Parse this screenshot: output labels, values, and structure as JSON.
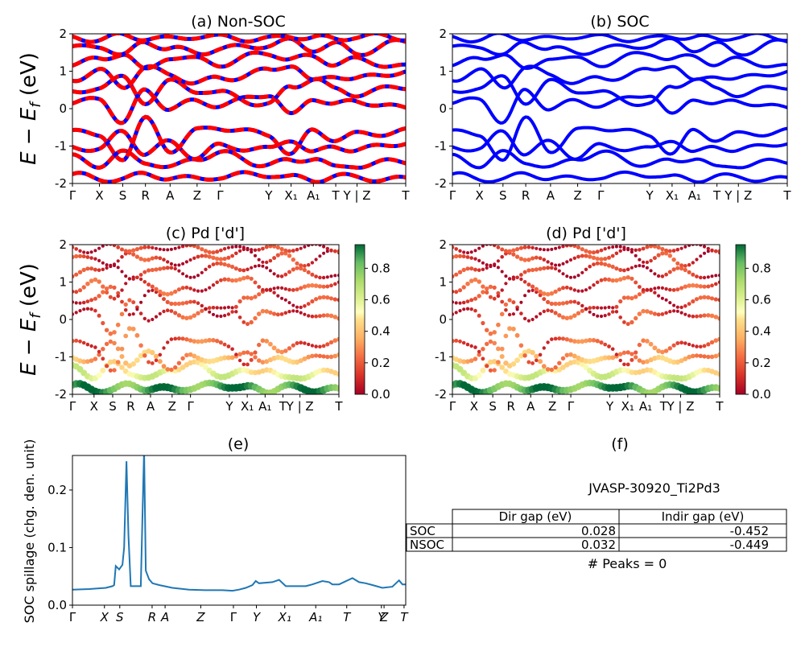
{
  "figure": {
    "ylabel_energy": "E − E",
    "ylabel_energy_sub": "f",
    "ylabel_energy_unit": " (eV)"
  },
  "kpath_labels": [
    "Γ",
    "X",
    "S",
    "R",
    "A",
    "Z",
    "Γ",
    "Y",
    "X₁",
    "A₁",
    "T",
    "Y | Z",
    "T"
  ],
  "kpath_positions": [
    0,
    0.081,
    0.151,
    0.219,
    0.293,
    0.374,
    0.443,
    0.589,
    0.656,
    0.723,
    0.79,
    0.854,
    1.0
  ],
  "colors": {
    "nonsoc_a": "#ff0000",
    "nonsoc_b": "#0000ff",
    "soc": "#0000ff",
    "spillage": "#1f77b4"
  },
  "chart_data": [
    {
      "id": "a",
      "type": "line",
      "title": "(a) Non-SOC",
      "xlabel": "",
      "ylabel": "E - E_f (eV)",
      "ylim": [
        -2,
        2
      ],
      "yticks": [
        -2,
        -1,
        0,
        1,
        2
      ],
      "style": "dashed red/blue bands",
      "bands": [
        {
          "values": [
            -1.75,
            -1.9,
            -1.85,
            -1.78,
            -1.82,
            -1.9,
            -1.8,
            -1.75,
            -1.85,
            -1.9,
            -1.8,
            -1.85,
            -1.9
          ]
        },
        {
          "values": [
            -1.3,
            -1.5,
            -1.2,
            -1.4,
            -1.6,
            -1.3,
            -1.2,
            -1.5,
            -1.4,
            -1.3,
            -1.6,
            -1.5,
            -1.4
          ]
        },
        {
          "values": [
            -1.0,
            -1.1,
            -0.6,
            -1.2,
            -0.9,
            -1.3,
            -1.0,
            -1.1,
            -0.8,
            -1.2,
            -1.0,
            -1.1,
            -0.9
          ]
        },
        {
          "values": [
            -0.5,
            -0.8,
            -1.3,
            -0.3,
            -1.1,
            -0.6,
            -0.5,
            -0.7,
            -1.2,
            -0.6,
            -0.8,
            -0.7,
            -0.6
          ]
        },
        {
          "values": [
            0.1,
            0.3,
            -0.4,
            0.5,
            0.0,
            0.2,
            0.1,
            0.4,
            -0.2,
            0.3,
            0.1,
            0.2,
            0.0
          ]
        },
        {
          "values": [
            0.4,
            0.6,
            0.8,
            0.2,
            0.7,
            0.5,
            0.4,
            0.1,
            0.6,
            0.8,
            0.5,
            0.4,
            0.6
          ]
        },
        {
          "values": [
            0.8,
            1.0,
            0.6,
            1.1,
            0.9,
            0.7,
            0.8,
            1.0,
            1.2,
            0.7,
            0.9,
            0.8,
            1.0
          ]
        },
        {
          "values": [
            1.2,
            1.3,
            1.5,
            1.0,
            1.4,
            1.3,
            1.2,
            1.5,
            1.3,
            1.4,
            1.2,
            1.3,
            1.1
          ]
        },
        {
          "values": [
            1.6,
            1.7,
            1.4,
            1.8,
            1.6,
            1.5,
            1.6,
            1.7,
            1.8,
            1.6,
            1.7,
            1.5,
            1.8
          ]
        },
        {
          "values": [
            1.9,
            1.85,
            1.95,
            1.9,
            1.85,
            1.95,
            1.9,
            1.85,
            1.95,
            1.9,
            1.85,
            1.95,
            1.9
          ]
        }
      ]
    },
    {
      "id": "b",
      "type": "line",
      "title": "(b) SOC",
      "xlabel": "",
      "ylabel": "",
      "ylim": [
        -2,
        2
      ],
      "yticks": [
        -2,
        -1,
        0,
        1,
        2
      ],
      "style": "solid blue bands",
      "bands": [
        {
          "values": [
            -1.75,
            -1.9,
            -1.85,
            -1.78,
            -1.82,
            -1.9,
            -1.8,
            -1.75,
            -1.85,
            -1.9,
            -1.8,
            -1.85,
            -1.9
          ]
        },
        {
          "values": [
            -1.3,
            -1.5,
            -1.2,
            -1.4,
            -1.6,
            -1.3,
            -1.2,
            -1.5,
            -1.4,
            -1.3,
            -1.6,
            -1.5,
            -1.4
          ]
        },
        {
          "values": [
            -1.0,
            -1.1,
            -0.6,
            -1.2,
            -0.9,
            -1.3,
            -1.0,
            -1.1,
            -0.8,
            -1.2,
            -1.0,
            -1.1,
            -0.9
          ]
        },
        {
          "values": [
            -0.5,
            -0.8,
            -1.3,
            -0.3,
            -1.1,
            -0.6,
            -0.5,
            -0.7,
            -1.2,
            -0.6,
            -0.8,
            -0.7,
            -0.6
          ]
        },
        {
          "values": [
            0.1,
            0.3,
            -0.4,
            0.5,
            0.0,
            0.2,
            0.1,
            0.4,
            -0.2,
            0.3,
            0.1,
            0.2,
            0.0
          ]
        },
        {
          "values": [
            0.4,
            0.6,
            0.8,
            0.2,
            0.7,
            0.5,
            0.4,
            0.1,
            0.6,
            0.8,
            0.5,
            0.4,
            0.6
          ]
        },
        {
          "values": [
            0.8,
            1.0,
            0.6,
            1.1,
            0.9,
            0.7,
            0.8,
            1.0,
            1.2,
            0.7,
            0.9,
            0.8,
            1.0
          ]
        },
        {
          "values": [
            1.2,
            1.3,
            1.5,
            1.0,
            1.4,
            1.3,
            1.2,
            1.5,
            1.3,
            1.4,
            1.2,
            1.3,
            1.1
          ]
        },
        {
          "values": [
            1.6,
            1.7,
            1.4,
            1.8,
            1.6,
            1.5,
            1.6,
            1.7,
            1.8,
            1.6,
            1.7,
            1.5,
            1.8
          ]
        },
        {
          "values": [
            1.9,
            1.85,
            1.95,
            1.9,
            1.85,
            1.95,
            1.9,
            1.85,
            1.95,
            1.9,
            1.85,
            1.95,
            1.9
          ]
        }
      ]
    },
    {
      "id": "c",
      "type": "scatter",
      "title": "(c)  Pd ['d']",
      "xlabel": "",
      "ylabel": "E - E_f (eV)",
      "ylim": [
        -2,
        2
      ],
      "yticks": [
        -2,
        -1,
        0,
        1,
        2
      ],
      "colormap": "RdYlGn",
      "colorbar_ticks": [
        0.0,
        0.2,
        0.4,
        0.6,
        0.8
      ],
      "colorbar_range": [
        0,
        0.95
      ],
      "weights_by_band": [
        0.85,
        0.55,
        0.35,
        0.2,
        0.15,
        0.12,
        0.15,
        0.1,
        0.12,
        0.1
      ]
    },
    {
      "id": "d",
      "type": "scatter",
      "title": "(d) Pd ['d']",
      "xlabel": "",
      "ylabel": "",
      "ylim": [
        -2,
        2
      ],
      "yticks": [
        -2,
        -1,
        0,
        1,
        2
      ],
      "colormap": "RdYlGn",
      "colorbar_ticks": [
        0.0,
        0.2,
        0.4,
        0.6,
        0.8
      ],
      "colorbar_range": [
        0,
        0.95
      ],
      "weights_by_band": [
        0.85,
        0.55,
        0.35,
        0.2,
        0.15,
        0.12,
        0.15,
        0.1,
        0.12,
        0.1
      ]
    },
    {
      "id": "e",
      "type": "line",
      "title": "(e)",
      "xlabel": "",
      "ylabel": "SOC spillage (chg. den. unit)",
      "ylim": [
        0,
        0.26
      ],
      "yticks": [
        0.0,
        0.1,
        0.2
      ],
      "xtick_labels": [
        "Γ",
        "X",
        "S",
        "R",
        "A",
        "Z",
        "Γ",
        "Y",
        "X₁",
        "A₁",
        "T",
        "Y",
        "Z",
        "T"
      ],
      "xtick_italic": [
        false,
        true,
        true,
        true,
        true,
        true,
        false,
        true,
        true,
        true,
        true,
        true,
        true,
        true
      ],
      "xtick_positions": [
        0,
        0.096,
        0.142,
        0.239,
        0.278,
        0.385,
        0.483,
        0.552,
        0.637,
        0.73,
        0.823,
        0.927,
        0.935,
        0.995
      ],
      "x": [
        0,
        0.05,
        0.1,
        0.12,
        0.125,
        0.13,
        0.14,
        0.15,
        0.155,
        0.162,
        0.168,
        0.175,
        0.2,
        0.205,
        0.21,
        0.215,
        0.22,
        0.23,
        0.24,
        0.26,
        0.3,
        0.35,
        0.4,
        0.45,
        0.48,
        0.5,
        0.52,
        0.54,
        0.55,
        0.56,
        0.6,
        0.62,
        0.64,
        0.66,
        0.7,
        0.72,
        0.75,
        0.77,
        0.78,
        0.8,
        0.84,
        0.86,
        0.88,
        0.9,
        0.93,
        0.96,
        0.98,
        0.99,
        1.0
      ],
      "y": [
        0.027,
        0.028,
        0.03,
        0.033,
        0.035,
        0.068,
        0.062,
        0.07,
        0.1,
        0.25,
        0.12,
        0.033,
        0.033,
        0.033,
        0.15,
        0.27,
        0.06,
        0.045,
        0.038,
        0.035,
        0.03,
        0.027,
        0.026,
        0.026,
        0.025,
        0.027,
        0.03,
        0.035,
        0.042,
        0.038,
        0.04,
        0.044,
        0.033,
        0.033,
        0.033,
        0.036,
        0.042,
        0.04,
        0.036,
        0.036,
        0.047,
        0.04,
        0.038,
        0.035,
        0.03,
        0.032,
        0.043,
        0.036,
        0.036
      ]
    },
    {
      "id": "f",
      "type": "table",
      "title": "(f)",
      "table_title": "JVASP-30920_Ti2Pd3",
      "columns": [
        "Dir gap (eV)",
        "Indir gap (eV)"
      ],
      "rows": [
        {
          "label": "SOC",
          "values": [
            "0.028",
            "-0.452"
          ]
        },
        {
          "label": "NSOC",
          "values": [
            "0.032",
            "-0.449"
          ]
        }
      ],
      "footnote": "# Peaks = 0"
    }
  ]
}
